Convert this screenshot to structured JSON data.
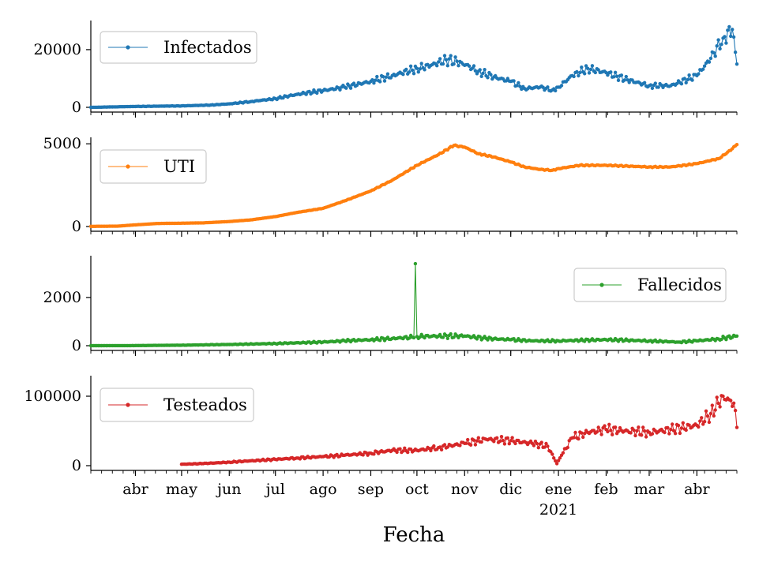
{
  "chart_data": {
    "type": "line",
    "xlabel": "Fecha",
    "x_start": "2020-03-03",
    "x_end": "2021-04-27",
    "x_ticks": [
      {
        "date": "2020-04-01",
        "label": "abr"
      },
      {
        "date": "2020-05-01",
        "label": "may"
      },
      {
        "date": "2020-06-01",
        "label": "jun"
      },
      {
        "date": "2020-07-01",
        "label": "jul"
      },
      {
        "date": "2020-08-01",
        "label": "ago"
      },
      {
        "date": "2020-09-01",
        "label": "sep"
      },
      {
        "date": "2020-10-01",
        "label": "oct"
      },
      {
        "date": "2020-11-01",
        "label": "nov"
      },
      {
        "date": "2020-12-01",
        "label": "dic"
      },
      {
        "date": "2021-01-01",
        "label": "ene",
        "sublabel": "2021"
      },
      {
        "date": "2021-02-01",
        "label": "feb"
      },
      {
        "date": "2021-03-01",
        "label": "mar"
      },
      {
        "date": "2021-04-01",
        "label": "abr"
      }
    ],
    "series": [
      {
        "name": "Infectados",
        "color": "#1f77b4",
        "ylim": [
          0,
          29000
        ],
        "yticks": [
          0,
          20000
        ],
        "legend_loc": "upper left",
        "points": [
          [
            "2020-03-03",
            0
          ],
          [
            "2020-04-01",
            300
          ],
          [
            "2020-05-01",
            500
          ],
          [
            "2020-05-20",
            800
          ],
          [
            "2020-06-01",
            1200
          ],
          [
            "2020-06-15",
            2000
          ],
          [
            "2020-07-01",
            3000
          ],
          [
            "2020-07-15",
            4500
          ],
          [
            "2020-08-01",
            5800
          ],
          [
            "2020-08-15",
            7000
          ],
          [
            "2020-09-01",
            9000
          ],
          [
            "2020-09-15",
            11000
          ],
          [
            "2020-10-01",
            13500
          ],
          [
            "2020-10-10",
            14500
          ],
          [
            "2020-10-20",
            16500
          ],
          [
            "2020-10-30",
            15500
          ],
          [
            "2020-11-10",
            12500
          ],
          [
            "2020-11-20",
            10500
          ],
          [
            "2020-12-01",
            9000
          ],
          [
            "2020-12-10",
            6500
          ],
          [
            "2020-12-20",
            7000
          ],
          [
            "2020-12-28",
            6000
          ],
          [
            "2021-01-01",
            7000
          ],
          [
            "2021-01-10",
            11000
          ],
          [
            "2021-01-20",
            13500
          ],
          [
            "2021-02-01",
            12000
          ],
          [
            "2021-02-15",
            9500
          ],
          [
            "2021-03-01",
            7500
          ],
          [
            "2021-03-15",
            7500
          ],
          [
            "2021-04-01",
            11000
          ],
          [
            "2021-04-10",
            17000
          ],
          [
            "2021-04-18",
            24000
          ],
          [
            "2021-04-24",
            27000
          ],
          [
            "2021-04-27",
            15000
          ]
        ]
      },
      {
        "name": "UTI",
        "color": "#ff7f0e",
        "ylim": [
          0,
          5200
        ],
        "yticks": [
          0,
          5000
        ],
        "legend_loc": "upper left",
        "points": [
          [
            "2020-03-03",
            10
          ],
          [
            "2020-03-20",
            20
          ],
          [
            "2020-04-01",
            100
          ],
          [
            "2020-04-15",
            180
          ],
          [
            "2020-05-01",
            200
          ],
          [
            "2020-05-15",
            220
          ],
          [
            "2020-06-01",
            300
          ],
          [
            "2020-06-15",
            400
          ],
          [
            "2020-07-01",
            600
          ],
          [
            "2020-07-15",
            850
          ],
          [
            "2020-08-01",
            1100
          ],
          [
            "2020-08-15",
            1550
          ],
          [
            "2020-09-01",
            2150
          ],
          [
            "2020-09-15",
            2800
          ],
          [
            "2020-10-01",
            3700
          ],
          [
            "2020-10-15",
            4350
          ],
          [
            "2020-10-25",
            4900
          ],
          [
            "2020-11-01",
            4800
          ],
          [
            "2020-11-10",
            4400
          ],
          [
            "2020-11-20",
            4200
          ],
          [
            "2020-12-01",
            3900
          ],
          [
            "2020-12-10",
            3600
          ],
          [
            "2020-12-20",
            3450
          ],
          [
            "2020-12-28",
            3400
          ],
          [
            "2021-01-01",
            3500
          ],
          [
            "2021-01-15",
            3700
          ],
          [
            "2021-02-01",
            3700
          ],
          [
            "2021-02-15",
            3650
          ],
          [
            "2021-03-01",
            3600
          ],
          [
            "2021-03-15",
            3600
          ],
          [
            "2021-04-01",
            3800
          ],
          [
            "2021-04-15",
            4100
          ],
          [
            "2021-04-20",
            4400
          ],
          [
            "2021-04-27",
            4950
          ]
        ]
      },
      {
        "name": "Fallecidos",
        "color": "#2ca02c",
        "ylim": [
          0,
          3600
        ],
        "yticks": [
          0,
          2000
        ],
        "legend_loc": "upper right",
        "points": [
          [
            "2020-03-03",
            0
          ],
          [
            "2020-04-01",
            5
          ],
          [
            "2020-05-01",
            20
          ],
          [
            "2020-06-01",
            50
          ],
          [
            "2020-07-01",
            90
          ],
          [
            "2020-08-01",
            150
          ],
          [
            "2020-08-15",
            200
          ],
          [
            "2020-09-01",
            250
          ],
          [
            "2020-09-15",
            300
          ],
          [
            "2020-09-28",
            350
          ],
          [
            "2020-09-29",
            330
          ],
          [
            "2020-09-30",
            3400
          ],
          [
            "2020-10-01",
            380
          ],
          [
            "2020-10-15",
            400
          ],
          [
            "2020-11-01",
            400
          ],
          [
            "2020-11-15",
            300
          ],
          [
            "2020-12-01",
            250
          ],
          [
            "2020-12-15",
            200
          ],
          [
            "2021-01-01",
            200
          ],
          [
            "2021-02-01",
            250
          ],
          [
            "2021-03-01",
            200
          ],
          [
            "2021-03-20",
            150
          ],
          [
            "2021-04-01",
            200
          ],
          [
            "2021-04-15",
            280
          ],
          [
            "2021-04-27",
            400
          ]
        ]
      },
      {
        "name": "Testeados",
        "color": "#d62728",
        "ylim": [
          0,
          125000
        ],
        "yticks": [
          0,
          100000
        ],
        "legend_loc": "upper left",
        "points": [
          [
            "2020-05-01",
            2000
          ],
          [
            "2020-05-15",
            3000
          ],
          [
            "2020-06-01",
            5000
          ],
          [
            "2020-06-15",
            7000
          ],
          [
            "2020-07-01",
            9000
          ],
          [
            "2020-07-15",
            11000
          ],
          [
            "2020-08-01",
            13000
          ],
          [
            "2020-08-15",
            15000
          ],
          [
            "2020-09-01",
            18000
          ],
          [
            "2020-09-15",
            22000
          ],
          [
            "2020-10-01",
            22000
          ],
          [
            "2020-10-15",
            26000
          ],
          [
            "2020-11-01",
            32000
          ],
          [
            "2020-11-15",
            38000
          ],
          [
            "2020-12-01",
            36000
          ],
          [
            "2020-12-15",
            32000
          ],
          [
            "2020-12-25",
            28000
          ],
          [
            "2020-12-31",
            3000
          ],
          [
            "2021-01-03",
            15000
          ],
          [
            "2021-01-10",
            40000
          ],
          [
            "2021-01-20",
            48000
          ],
          [
            "2021-02-01",
            52000
          ],
          [
            "2021-02-15",
            50000
          ],
          [
            "2021-03-01",
            48000
          ],
          [
            "2021-03-15",
            52000
          ],
          [
            "2021-04-01",
            58000
          ],
          [
            "2021-04-10",
            75000
          ],
          [
            "2021-04-18",
            100000
          ],
          [
            "2021-04-22",
            95000
          ],
          [
            "2021-04-25",
            90000
          ],
          [
            "2021-04-27",
            55000
          ]
        ]
      }
    ]
  }
}
